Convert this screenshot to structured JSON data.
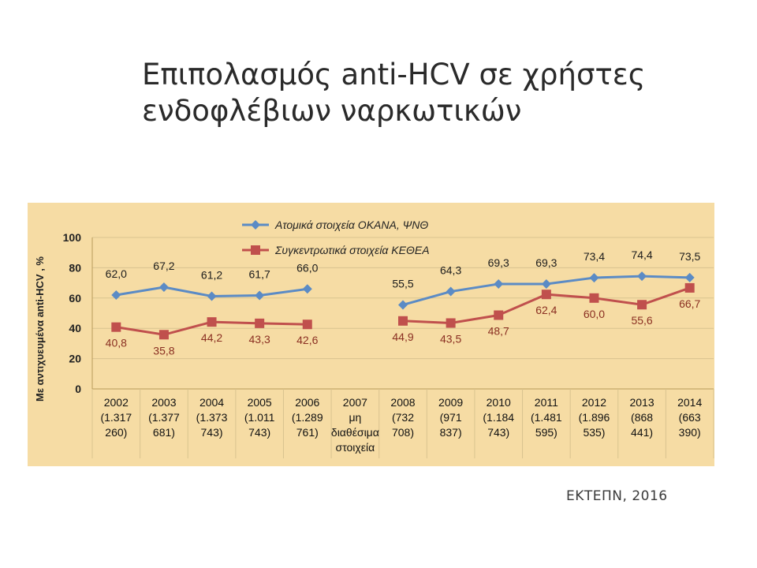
{
  "title": {
    "line1": "Επιπολασμός anti-HCV σε χρήστες",
    "line2": "ενδοφλέβιων ναρκωτικών"
  },
  "source": "ΕΚΤΕΠΝ, 2016",
  "chart_data": {
    "type": "line",
    "ylabel": "Με αντιχυευμένα anti-HCV , %",
    "ylim": [
      0,
      100
    ],
    "yticks": [
      "0",
      "20",
      "40",
      "60",
      "80",
      "100"
    ],
    "grid": true,
    "legend_position": "top-center",
    "categories": [
      [
        "2002",
        "(1.317",
        "260)"
      ],
      [
        "2003",
        "(1.377",
        "681)"
      ],
      [
        "2004",
        "(1.373",
        "743)"
      ],
      [
        "2005",
        "(1.011",
        "743)"
      ],
      [
        "2006",
        "(1.289",
        "761)"
      ],
      [
        "2007",
        "μη",
        "διαθέσιμα",
        "στοιχεία"
      ],
      [
        "2008",
        "(732",
        "708)"
      ],
      [
        "2009",
        "(971",
        "837)"
      ],
      [
        "2010",
        "(1.184",
        "743)"
      ],
      [
        "2011",
        "(1.481",
        "595)"
      ],
      [
        "2012",
        "(1.896",
        "535)"
      ],
      [
        "2013",
        "(868",
        "441)"
      ],
      [
        "2014",
        "(663",
        "390)"
      ]
    ],
    "series": [
      {
        "name": "Ατομικά στοιχεία ΟΚΑΝΑ, ΨΝΘ",
        "color": "#5b8bc5",
        "marker": "diamond",
        "values": [
          62.0,
          67.2,
          61.2,
          61.7,
          66.0,
          null,
          55.5,
          64.3,
          69.3,
          69.3,
          73.4,
          74.4,
          73.5
        ],
        "labels": [
          "62,0",
          "67,2",
          "61,2",
          "61,7",
          "66,0",
          "",
          "55,5",
          "64,3",
          "69,3",
          "69,3",
          "73,4",
          "74,4",
          "73,5"
        ]
      },
      {
        "name": "Συγκεντρωτικά στοιχεία ΚΕΘΕΑ",
        "color": "#c0504d",
        "marker": "square",
        "values": [
          40.8,
          35.8,
          44.2,
          43.3,
          42.6,
          null,
          44.9,
          43.5,
          48.7,
          62.4,
          60.0,
          55.6,
          66.7
        ],
        "labels": [
          "40,8",
          "35,8",
          "44,2",
          "43,3",
          "42,6",
          "",
          "44,9",
          "43,5",
          "48,7",
          "62,4",
          "60,0",
          "55,6",
          "66,7"
        ]
      }
    ]
  }
}
